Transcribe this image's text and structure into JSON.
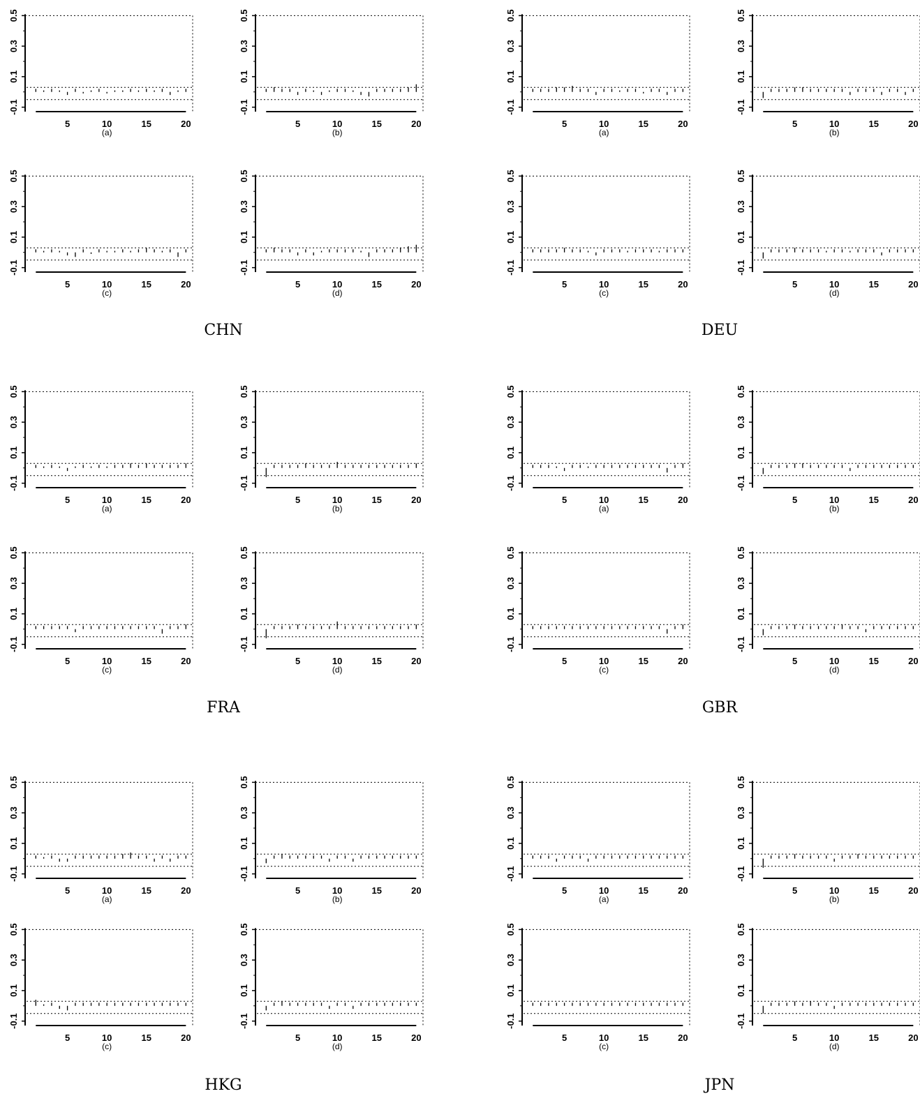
{
  "chart_data": {
    "type": "bar",
    "description_free": true,
    "lags": [
      1,
      2,
      3,
      4,
      5,
      6,
      7,
      8,
      9,
      10,
      11,
      12,
      13,
      14,
      15,
      16,
      17,
      18,
      19,
      20
    ],
    "xticks": [
      5,
      10,
      15,
      20
    ],
    "yticks": [
      -0.1,
      0.1,
      0.3,
      0.5
    ],
    "ytick_labels": [
      "-0.1",
      "0.1",
      "0.3",
      "0.5"
    ],
    "ylim": [
      -0.12,
      0.52
    ],
    "conf_band": [
      -0.05,
      0.03
    ],
    "groups": [
      {
        "country": "CHN",
        "panels": [
          {
            "label": "(a)",
            "values": [
              0.02,
              0.01,
              0.02,
              0.01,
              -0.02,
              0.02,
              -0.01,
              0.01,
              0.02,
              -0.01,
              0.01,
              0.01,
              0.02,
              0.01,
              0.02,
              0.01,
              0.02,
              -0.02,
              0.01,
              0.02
            ]
          },
          {
            "label": "(b)",
            "values": [
              0.02,
              0.03,
              0.02,
              0.02,
              -0.02,
              0.02,
              0.01,
              -0.02,
              0.01,
              0.02,
              0.02,
              0.01,
              -0.02,
              -0.03,
              0.02,
              0.02,
              0.02,
              0.02,
              0.03,
              0.05
            ]
          },
          {
            "label": "(c)",
            "values": [
              0.02,
              0.01,
              0.02,
              0.01,
              -0.02,
              -0.03,
              0.02,
              -0.01,
              0.02,
              0.01,
              0.01,
              0.02,
              0.01,
              0.02,
              0.03,
              0.02,
              0.01,
              0.02,
              -0.03,
              0.02
            ]
          },
          {
            "label": "(d)",
            "values": [
              0.02,
              0.03,
              0.02,
              0.02,
              -0.02,
              0.02,
              -0.02,
              0.01,
              0.02,
              0.02,
              0.02,
              0.02,
              0.01,
              -0.03,
              0.02,
              0.02,
              0.02,
              0.03,
              0.04,
              0.05
            ]
          }
        ]
      },
      {
        "country": "DEU",
        "panels": [
          {
            "label": "(a)",
            "values": [
              0.02,
              0.02,
              0.02,
              0.03,
              0.03,
              0.04,
              0.02,
              0.02,
              -0.02,
              0.02,
              0.02,
              0.01,
              0.02,
              0.02,
              -0.01,
              0.02,
              0.02,
              -0.02,
              0.02,
              0.02
            ]
          },
          {
            "label": "(b)",
            "values": [
              -0.04,
              0.02,
              0.02,
              0.02,
              0.03,
              0.03,
              0.02,
              0.02,
              0.02,
              0.02,
              0.02,
              -0.02,
              0.02,
              0.02,
              0.02,
              -0.02,
              0.02,
              0.02,
              -0.02,
              0.02
            ]
          },
          {
            "label": "(c)",
            "values": [
              0.02,
              0.02,
              0.02,
              0.02,
              0.03,
              0.02,
              0.02,
              0.01,
              -0.02,
              0.02,
              0.02,
              0.02,
              0.01,
              0.02,
              0.02,
              0.02,
              0.01,
              0.02,
              0.02,
              0.02
            ]
          },
          {
            "label": "(d)",
            "values": [
              -0.04,
              0.02,
              0.02,
              0.02,
              0.03,
              0.02,
              0.02,
              0.02,
              0.01,
              0.02,
              0.02,
              0.01,
              0.02,
              0.02,
              0.02,
              -0.02,
              0.02,
              0.02,
              0.02,
              0.02
            ]
          }
        ]
      },
      {
        "country": "FRA",
        "panels": [
          {
            "label": "(a)",
            "values": [
              0.02,
              0.01,
              0.02,
              0.01,
              -0.02,
              0.01,
              0.02,
              0.01,
              0.02,
              0.01,
              0.02,
              0.02,
              0.03,
              0.02,
              0.03,
              0.02,
              0.02,
              0.02,
              0.02,
              0.03
            ]
          },
          {
            "label": "(b)",
            "values": [
              -0.06,
              0.02,
              0.02,
              0.02,
              0.02,
              0.03,
              0.02,
              0.02,
              0.02,
              0.04,
              0.02,
              0.02,
              0.02,
              0.02,
              0.02,
              0.02,
              0.02,
              0.02,
              0.02,
              0.03
            ]
          },
          {
            "label": "(c)",
            "values": [
              0.02,
              0.02,
              0.02,
              0.02,
              0.02,
              -0.02,
              0.02,
              0.02,
              0.02,
              0.02,
              0.02,
              0.02,
              0.02,
              0.02,
              0.02,
              0.02,
              -0.03,
              0.02,
              0.02,
              0.03
            ]
          },
          {
            "label": "(d)",
            "values": [
              -0.06,
              0.02,
              0.02,
              0.02,
              0.03,
              0.02,
              0.02,
              0.02,
              0.02,
              0.05,
              0.02,
              0.02,
              0.02,
              0.02,
              0.02,
              0.02,
              0.02,
              0.02,
              0.02,
              0.03
            ]
          }
        ]
      },
      {
        "country": "GBR",
        "panels": [
          {
            "label": "(a)",
            "values": [
              0.02,
              0.02,
              0.02,
              0.01,
              -0.02,
              0.02,
              0.02,
              0.01,
              0.02,
              0.02,
              0.02,
              0.02,
              0.02,
              0.02,
              0.02,
              0.02,
              0.02,
              -0.03,
              0.02,
              0.03
            ]
          },
          {
            "label": "(b)",
            "values": [
              -0.04,
              0.02,
              0.02,
              0.02,
              0.03,
              0.03,
              0.02,
              0.02,
              0.02,
              0.02,
              0.02,
              -0.02,
              0.02,
              0.02,
              0.02,
              0.02,
              0.02,
              0.02,
              0.02,
              0.02
            ]
          },
          {
            "label": "(c)",
            "values": [
              0.02,
              0.02,
              0.02,
              0.02,
              0.02,
              0.02,
              0.02,
              0.02,
              0.02,
              0.02,
              0.02,
              0.02,
              0.02,
              0.02,
              0.02,
              0.02,
              0.02,
              -0.03,
              0.02,
              0.03
            ]
          },
          {
            "label": "(d)",
            "values": [
              -0.04,
              0.02,
              0.02,
              0.02,
              0.03,
              0.02,
              0.02,
              0.02,
              0.02,
              0.02,
              0.03,
              0.02,
              0.02,
              -0.02,
              0.02,
              0.02,
              0.02,
              0.02,
              0.02,
              0.02
            ]
          }
        ]
      },
      {
        "country": "HKG",
        "panels": [
          {
            "label": "(a)",
            "values": [
              0.02,
              0.01,
              0.02,
              -0.02,
              -0.02,
              0.02,
              0.02,
              0.02,
              0.02,
              0.02,
              0.02,
              0.03,
              0.04,
              0.02,
              0.02,
              -0.02,
              0.02,
              -0.02,
              0.02,
              0.02
            ]
          },
          {
            "label": "(b)",
            "values": [
              -0.03,
              0.02,
              0.03,
              0.02,
              0.02,
              0.02,
              0.02,
              0.02,
              -0.02,
              0.02,
              0.02,
              -0.02,
              0.02,
              0.02,
              0.02,
              0.02,
              0.02,
              0.02,
              0.02,
              0.02
            ]
          },
          {
            "label": "(c)",
            "values": [
              0.04,
              0.01,
              0.02,
              -0.02,
              -0.03,
              0.02,
              0.02,
              0.02,
              0.02,
              0.02,
              0.02,
              0.02,
              0.02,
              0.02,
              0.02,
              0.02,
              0.02,
              0.02,
              0.02,
              0.02
            ]
          },
          {
            "label": "(d)",
            "values": [
              -0.03,
              0.02,
              0.03,
              0.02,
              0.02,
              0.02,
              0.02,
              0.02,
              -0.02,
              0.02,
              0.02,
              -0.02,
              0.02,
              0.02,
              0.02,
              0.02,
              0.02,
              0.02,
              0.02,
              0.02
            ]
          }
        ]
      },
      {
        "country": "JPN",
        "panels": [
          {
            "label": "(a)",
            "values": [
              0.02,
              0.02,
              0.02,
              -0.02,
              0.02,
              0.02,
              0.02,
              -0.02,
              0.02,
              0.02,
              0.02,
              0.02,
              0.02,
              0.02,
              0.02,
              0.02,
              0.02,
              0.02,
              0.02,
              0.02
            ]
          },
          {
            "label": "(b)",
            "values": [
              -0.06,
              0.02,
              0.02,
              0.02,
              0.03,
              0.02,
              0.02,
              0.02,
              0.02,
              -0.02,
              0.02,
              0.02,
              0.03,
              0.02,
              0.02,
              0.02,
              0.02,
              0.02,
              0.02,
              0.02
            ]
          },
          {
            "label": "(c)",
            "values": [
              0.02,
              0.02,
              0.02,
              0.02,
              0.02,
              0.02,
              0.02,
              0.02,
              0.02,
              0.02,
              0.02,
              0.02,
              0.02,
              0.02,
              0.02,
              0.02,
              0.02,
              0.02,
              0.02,
              0.02
            ]
          },
          {
            "label": "(d)",
            "values": [
              -0.05,
              0.02,
              0.02,
              0.02,
              0.03,
              0.02,
              0.03,
              0.02,
              0.02,
              -0.02,
              0.02,
              0.02,
              0.02,
              0.02,
              0.02,
              0.02,
              0.02,
              0.02,
              0.02,
              0.02
            ]
          }
        ]
      }
    ]
  },
  "colors": {
    "ink": "#000000",
    "background": "#ffffff"
  }
}
